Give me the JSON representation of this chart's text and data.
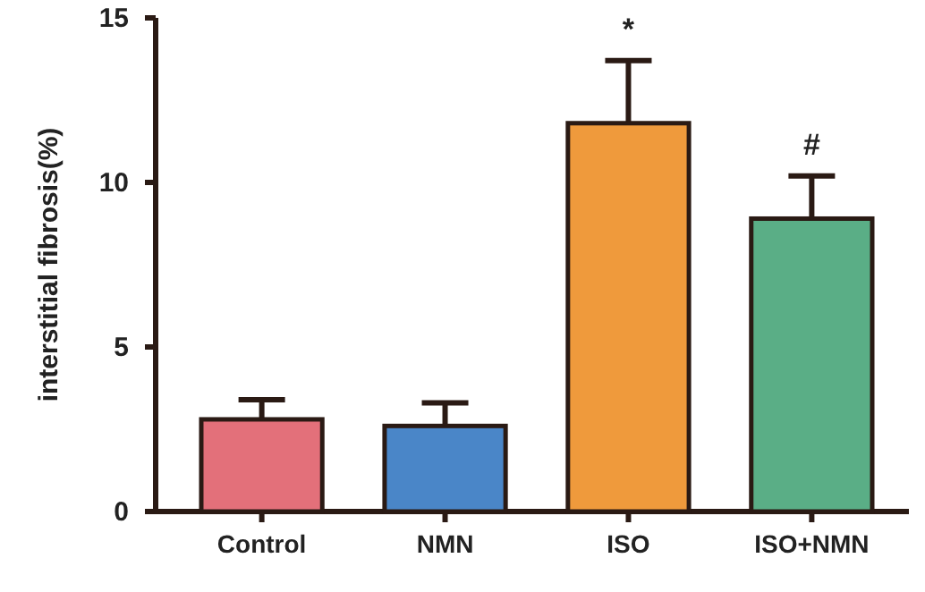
{
  "chart_data": {
    "type": "bar",
    "ylabel": "interstitial fibrosis(%)",
    "categories": [
      "Control",
      "NMN",
      "ISO",
      "ISO+NMN"
    ],
    "values": [
      2.8,
      2.6,
      11.8,
      8.9
    ],
    "colors": [
      "#e3707a",
      "#4a86c8",
      "#ef9a3c",
      "#5aae86"
    ],
    "errors": [
      [
        2.8,
        3.4
      ],
      [
        2.6,
        3.3
      ],
      [
        11.8,
        13.7
      ],
      [
        8.9,
        10.2
      ]
    ],
    "ylim": [
      0,
      15
    ],
    "yticks": [
      0,
      5,
      10,
      15
    ],
    "grid": false,
    "annotations": [
      "*",
      "#"
    ]
  }
}
